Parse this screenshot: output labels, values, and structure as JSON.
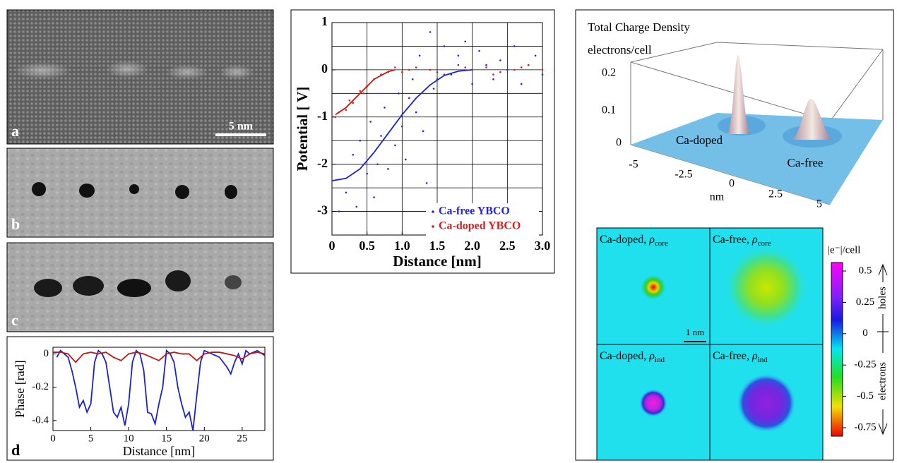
{
  "panels": {
    "a": {
      "label": "a",
      "scale_bar": "5 nm"
    },
    "b": {
      "label": "b"
    },
    "c": {
      "label": "c"
    },
    "d": {
      "label": "d"
    }
  },
  "chart_data": [
    {
      "type": "line",
      "xlabel": "Distance [nm]",
      "ylabel": "Phase [rad]",
      "xlim": [
        0,
        28
      ],
      "ylim": [
        -0.46,
        0.04
      ],
      "xticks": [
        0,
        5,
        10,
        15,
        20,
        25
      ],
      "yticks": [
        0,
        -0.2,
        -0.4
      ],
      "grid": false,
      "series": [
        {
          "color": "#1c22c8",
          "style": "line",
          "x": [
            0.5,
            1,
            1.5,
            2,
            2.5,
            3,
            3.5,
            4,
            4.5,
            5,
            5.5,
            6,
            6.5,
            7,
            7.5,
            8,
            8.5,
            9,
            9.5,
            10,
            10.5,
            11,
            11.5,
            12,
            12.5,
            13,
            13.5,
            14,
            14.5,
            15,
            15.5,
            16,
            16.5,
            17,
            17.5,
            18,
            18.5,
            19,
            19.5,
            20,
            21,
            22,
            23,
            23.5,
            24,
            24.5,
            25,
            25.5,
            26,
            27,
            28
          ],
          "values": [
            -0.02,
            0.02,
            0.0,
            -0.02,
            -0.1,
            -0.2,
            -0.32,
            -0.28,
            -0.35,
            -0.3,
            -0.05,
            0.02,
            0.0,
            -0.05,
            -0.2,
            -0.35,
            -0.38,
            -0.32,
            -0.43,
            -0.3,
            -0.05,
            0.02,
            0.0,
            -0.1,
            -0.35,
            -0.36,
            -0.42,
            -0.3,
            -0.2,
            0.02,
            0.0,
            -0.05,
            -0.2,
            -0.3,
            -0.38,
            -0.35,
            -0.46,
            -0.25,
            -0.05,
            0.02,
            0.0,
            -0.02,
            -0.08,
            -0.12,
            -0.05,
            0.0,
            -0.06,
            0.02,
            0.0,
            0.02,
            -0.01
          ]
        },
        {
          "color": "#c01a10",
          "style": "line",
          "x": [
            0,
            1,
            2,
            3,
            4,
            5,
            6,
            7,
            8,
            9,
            10,
            11,
            12,
            13,
            14,
            15,
            16,
            17,
            18,
            19,
            20,
            21,
            22,
            23,
            24,
            25,
            26,
            27,
            28
          ],
          "values": [
            0.01,
            0.01,
            0.0,
            -0.05,
            0.0,
            0.01,
            0.0,
            0.01,
            -0.02,
            -0.04,
            0.0,
            0.01,
            0.0,
            -0.02,
            -0.04,
            0.0,
            0.01,
            0.0,
            0.0,
            -0.04,
            0.0,
            0.01,
            0.01,
            0.0,
            -0.01,
            -0.03,
            0.0,
            0.01,
            0.0
          ]
        }
      ]
    },
    {
      "type": "scatter",
      "xlabel": "Distance [nm]",
      "ylabel": "Potential [ V]",
      "xlim": [
        0,
        3
      ],
      "ylim": [
        -3.5,
        1
      ],
      "xticks": [
        0,
        0.5,
        {
          "value": 1,
          "label": "1.0"
        },
        1.5,
        {
          "value": 2,
          "label": "2.0"
        },
        2.5,
        {
          "value": 3,
          "label": "3.0"
        }
      ],
      "yticks": [
        -3,
        -2,
        -1,
        0,
        1
      ],
      "grid": true,
      "legend": "lower right",
      "series": [
        {
          "name": "Ca-free YBCO",
          "color": "#2626d8",
          "style": "points",
          "x": [
            0.1,
            0.2,
            0.3,
            0.35,
            0.4,
            0.5,
            0.55,
            0.6,
            0.7,
            0.75,
            0.8,
            0.9,
            0.95,
            1.0,
            1.05,
            1.1,
            1.2,
            1.25,
            1.3,
            1.4,
            1.45,
            1.5,
            1.6,
            1.7,
            1.8,
            1.9,
            2.0,
            2.1,
            2.2,
            2.3,
            2.4,
            2.5,
            2.6,
            2.7,
            2.8,
            2.9,
            3.0,
            1.35,
            1.15,
            0.65
          ],
          "values": [
            -3.0,
            -2.6,
            -1.8,
            -2.9,
            -1.5,
            -2.2,
            -1.1,
            -2.7,
            -1.4,
            -0.8,
            -2.1,
            -1.6,
            -0.5,
            -1.2,
            -1.9,
            -0.6,
            -0.9,
            0.3,
            -1.3,
            0.8,
            -0.4,
            -0.2,
            0.5,
            -0.1,
            0.3,
            0.6,
            -0.3,
            0.4,
            0.1,
            -0.2,
            0.2,
            0.0,
            0.5,
            -0.3,
            0.1,
            0.3,
            -0.1,
            -2.4,
            -0.2,
            -2.0
          ]
        },
        {
          "name": "Ca-doped YBCO",
          "color": "#d02020",
          "style": "points",
          "x": [
            0.05,
            0.1,
            0.2,
            0.25,
            0.3,
            0.4,
            0.45,
            0.5,
            0.6,
            0.7,
            0.8,
            0.9,
            1.0,
            1.2,
            1.4,
            1.6,
            1.8,
            2.0,
            2.2,
            2.4,
            2.6,
            2.8,
            3.0,
            1.1,
            1.5,
            1.9,
            2.3,
            2.7
          ],
          "values": [
            -1.0,
            -0.9,
            -0.85,
            -0.65,
            -0.7,
            -0.45,
            -0.5,
            -0.35,
            -0.2,
            -0.1,
            -0.05,
            0.05,
            -0.05,
            0.05,
            0.0,
            -0.1,
            0.1,
            0.0,
            0.05,
            -0.05,
            0.0,
            0.1,
            0.0,
            0.0,
            -0.05,
            0.05,
            -0.1,
            0.05
          ]
        },
        {
          "color": "#1c22c8",
          "style": "line",
          "x": [
            0,
            0.2,
            0.4,
            0.6,
            0.8,
            1.0,
            1.2,
            1.4,
            1.6,
            1.8,
            2.0
          ],
          "values": [
            -2.35,
            -2.3,
            -2.1,
            -1.75,
            -1.35,
            -0.95,
            -0.6,
            -0.32,
            -0.12,
            -0.03,
            0
          ]
        },
        {
          "color": "#c01a10",
          "style": "line",
          "x": [
            0.05,
            0.2,
            0.4,
            0.6,
            0.8,
            0.9
          ],
          "values": [
            -0.95,
            -0.8,
            -0.5,
            -0.2,
            -0.04,
            0
          ]
        }
      ]
    }
  ],
  "charge_density": {
    "title": "Total Charge Density",
    "zlabel": "electrons/cell",
    "zticks": [
      0.2,
      0.1,
      0
    ],
    "xticks": [
      -5,
      -2.5,
      0,
      2.5,
      5
    ],
    "xlabel": "nm",
    "peaks": [
      "Ca-doped",
      "Ca-free"
    ]
  },
  "maps": {
    "cells": [
      {
        "text": "Ca-doped,",
        "symbol": "ρ",
        "subscript": "core"
      },
      {
        "text": "Ca-free,",
        "symbol": "ρ",
        "subscript": "core"
      },
      {
        "text": "Ca-doped,",
        "symbol": "ρ",
        "subscript": "ind"
      },
      {
        "text": "Ca-free,",
        "symbol": "ρ",
        "subscript": "ind"
      }
    ],
    "scale_bar": "1 nm",
    "colorbar": {
      "label": "|e⁻|/cell",
      "ticks": [
        0.5,
        0.25,
        0,
        -0.25,
        -0.5,
        -0.75
      ],
      "upper": "holes",
      "lower": "electrons"
    }
  }
}
